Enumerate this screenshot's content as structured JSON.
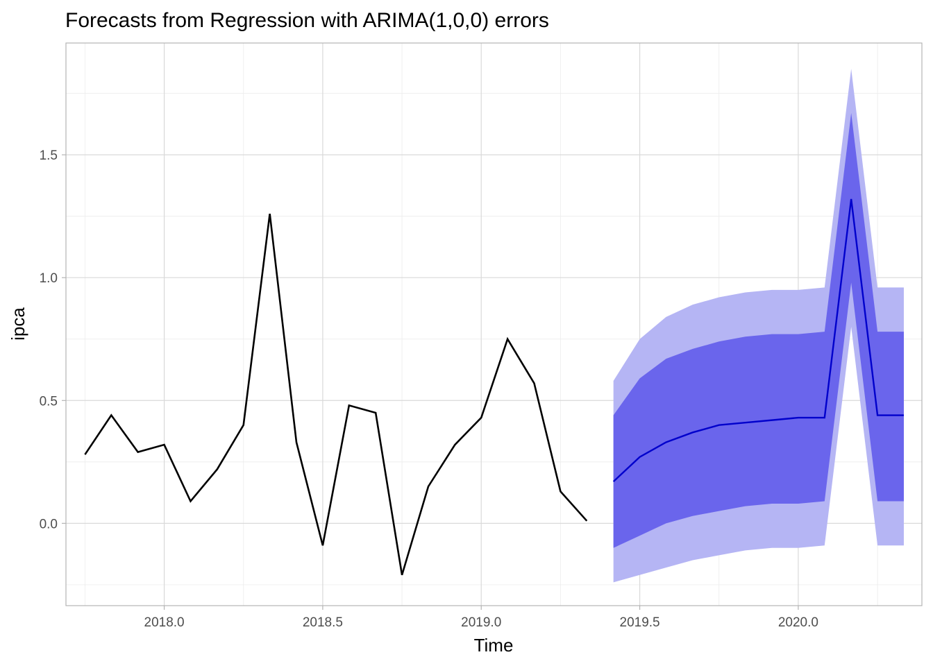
{
  "chart_data": {
    "type": "line",
    "title": "Forecasts from Regression with ARIMA(1,0,0) errors",
    "xlabel": "Time",
    "ylabel": "ipca",
    "xlim": [
      2017.69,
      2020.39
    ],
    "ylim": [
      -0.335,
      1.955
    ],
    "x_ticks": [
      2018.0,
      2018.5,
      2019.0,
      2019.5,
      2020.0
    ],
    "x_tick_labels": [
      "2018.0",
      "2018.5",
      "2019.0",
      "2019.5",
      "2020.0"
    ],
    "y_ticks": [
      0.0,
      0.5,
      1.0,
      1.5
    ],
    "y_tick_labels": [
      "0.0",
      "0.5",
      "1.0",
      "1.5"
    ],
    "grid": true,
    "colors": {
      "observed": "#000000",
      "forecast": "#0000CC",
      "band_95": "#B5B5F4",
      "band_80": "#6A65EC"
    },
    "observed": {
      "x": [
        2017.75,
        2017.833,
        2017.917,
        2018.0,
        2018.083,
        2018.167,
        2018.25,
        2018.333,
        2018.417,
        2018.5,
        2018.583,
        2018.667,
        2018.75,
        2018.833,
        2018.917,
        2019.0,
        2019.083,
        2019.167,
        2019.25,
        2019.333
      ],
      "y": [
        0.28,
        0.44,
        0.29,
        0.32,
        0.09,
        0.22,
        0.4,
        1.26,
        0.33,
        -0.09,
        0.48,
        0.45,
        -0.21,
        0.15,
        0.32,
        0.43,
        0.75,
        0.57,
        0.13,
        0.01
      ]
    },
    "forecast": {
      "x": [
        2019.417,
        2019.5,
        2019.583,
        2019.667,
        2019.75,
        2019.833,
        2019.917,
        2020.0,
        2020.083,
        2020.167,
        2020.25,
        2020.333
      ],
      "mean": [
        0.17,
        0.27,
        0.33,
        0.37,
        0.4,
        0.41,
        0.42,
        0.43,
        0.43,
        1.32,
        0.44,
        0.44
      ],
      "lo80": [
        -0.1,
        -0.05,
        0.0,
        0.03,
        0.05,
        0.07,
        0.08,
        0.08,
        0.09,
        0.98,
        0.09,
        0.09
      ],
      "hi80": [
        0.44,
        0.59,
        0.67,
        0.71,
        0.74,
        0.76,
        0.77,
        0.77,
        0.78,
        1.67,
        0.78,
        0.78
      ],
      "lo95": [
        -0.24,
        -0.21,
        -0.18,
        -0.15,
        -0.13,
        -0.11,
        -0.1,
        -0.1,
        -0.09,
        0.8,
        -0.09,
        -0.09
      ],
      "hi95": [
        0.58,
        0.75,
        0.84,
        0.89,
        0.92,
        0.94,
        0.95,
        0.95,
        0.96,
        1.85,
        0.96,
        0.96
      ]
    }
  }
}
